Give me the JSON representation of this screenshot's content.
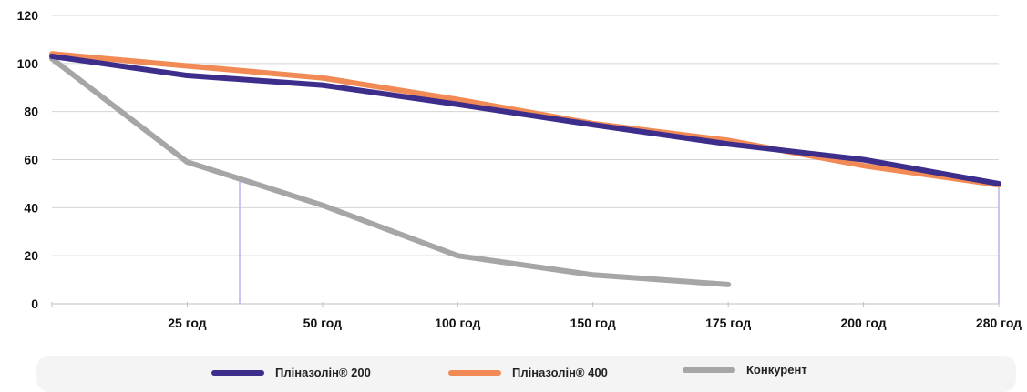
{
  "chart_data": {
    "type": "line",
    "categories": [
      "",
      "25 год",
      "50 год",
      "100 год",
      "150 год",
      "175 год",
      "200 год",
      "280 год"
    ],
    "ylim": [
      0,
      120
    ],
    "yticks": [
      "0",
      "20",
      "40",
      "60",
      "80",
      "100",
      "120"
    ],
    "grid": true,
    "legend_position": "bottom",
    "series": [
      {
        "name": "Пліназолін® 200",
        "color": "#3d2e8c",
        "points": [
          [
            0,
            103
          ],
          [
            1,
            95
          ],
          [
            2,
            91
          ],
          [
            3,
            83
          ],
          [
            4,
            74.5
          ],
          [
            5,
            66.5
          ],
          [
            6,
            60
          ],
          [
            7,
            50
          ]
        ]
      },
      {
        "name": "Пліназолін® 400",
        "color": "#f28a55",
        "points": [
          [
            0,
            104
          ],
          [
            1,
            99
          ],
          [
            2,
            94
          ],
          [
            3,
            85
          ],
          [
            4,
            75
          ],
          [
            5,
            68
          ],
          [
            6,
            57.5
          ],
          [
            7,
            49.5
          ]
        ]
      },
      {
        "name": "Конкурент",
        "color": "#a6a6a6",
        "points": [
          [
            0,
            102
          ],
          [
            1,
            59
          ],
          [
            2,
            41
          ],
          [
            3,
            20
          ],
          [
            4,
            12
          ],
          [
            5,
            8
          ]
        ]
      }
    ]
  }
}
